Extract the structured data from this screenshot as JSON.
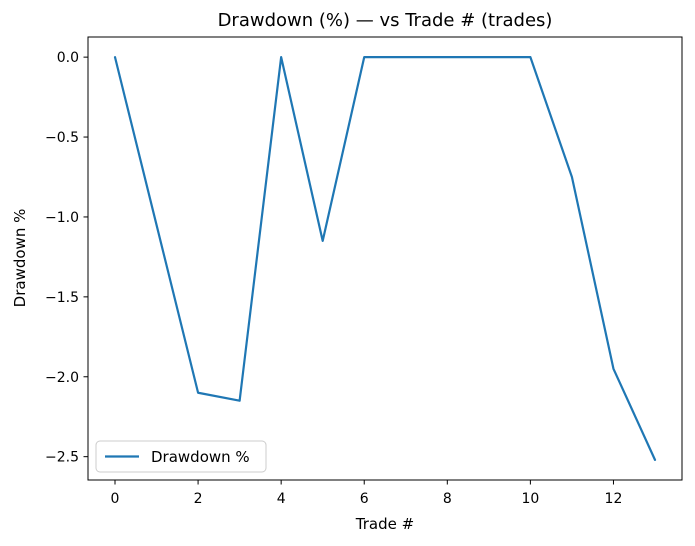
{
  "chart_data": {
    "type": "line",
    "title": "Drawdown (%) — vs Trade # (trades)",
    "xlabel": "Trade #",
    "ylabel": "Drawdown %",
    "x": [
      0,
      1,
      2,
      3,
      4,
      5,
      6,
      7,
      8,
      9,
      10,
      11,
      12,
      13
    ],
    "series": [
      {
        "name": "Drawdown %",
        "color": "#1f77b4",
        "values": [
          0.0,
          -1.05,
          -2.1,
          -2.15,
          0.0,
          -1.15,
          0.0,
          0.0,
          0.0,
          0.0,
          0.0,
          -0.75,
          -1.95,
          -2.52
        ]
      }
    ],
    "xlim": [
      -0.65,
      13.65
    ],
    "ylim": [
      -2.646,
      0.126
    ],
    "xticks": [
      0,
      2,
      4,
      6,
      8,
      10,
      12
    ],
    "xtick_labels": [
      "0",
      "2",
      "4",
      "6",
      "8",
      "10",
      "12"
    ],
    "yticks": [
      0.0,
      -0.5,
      -1.0,
      -1.5,
      -2.0,
      -2.5
    ],
    "ytick_labels": [
      "0.0",
      "−0.5",
      "−1.0",
      "−1.5",
      "−2.0",
      "−2.5"
    ],
    "grid": false,
    "legend": {
      "position": "lower left",
      "entries": [
        {
          "label": "Drawdown %",
          "color": "#1f77b4"
        }
      ]
    },
    "colors": {
      "line": "#1f77b4",
      "spine": "#000000",
      "legend_border": "#cccccc",
      "background": "#ffffff"
    }
  }
}
